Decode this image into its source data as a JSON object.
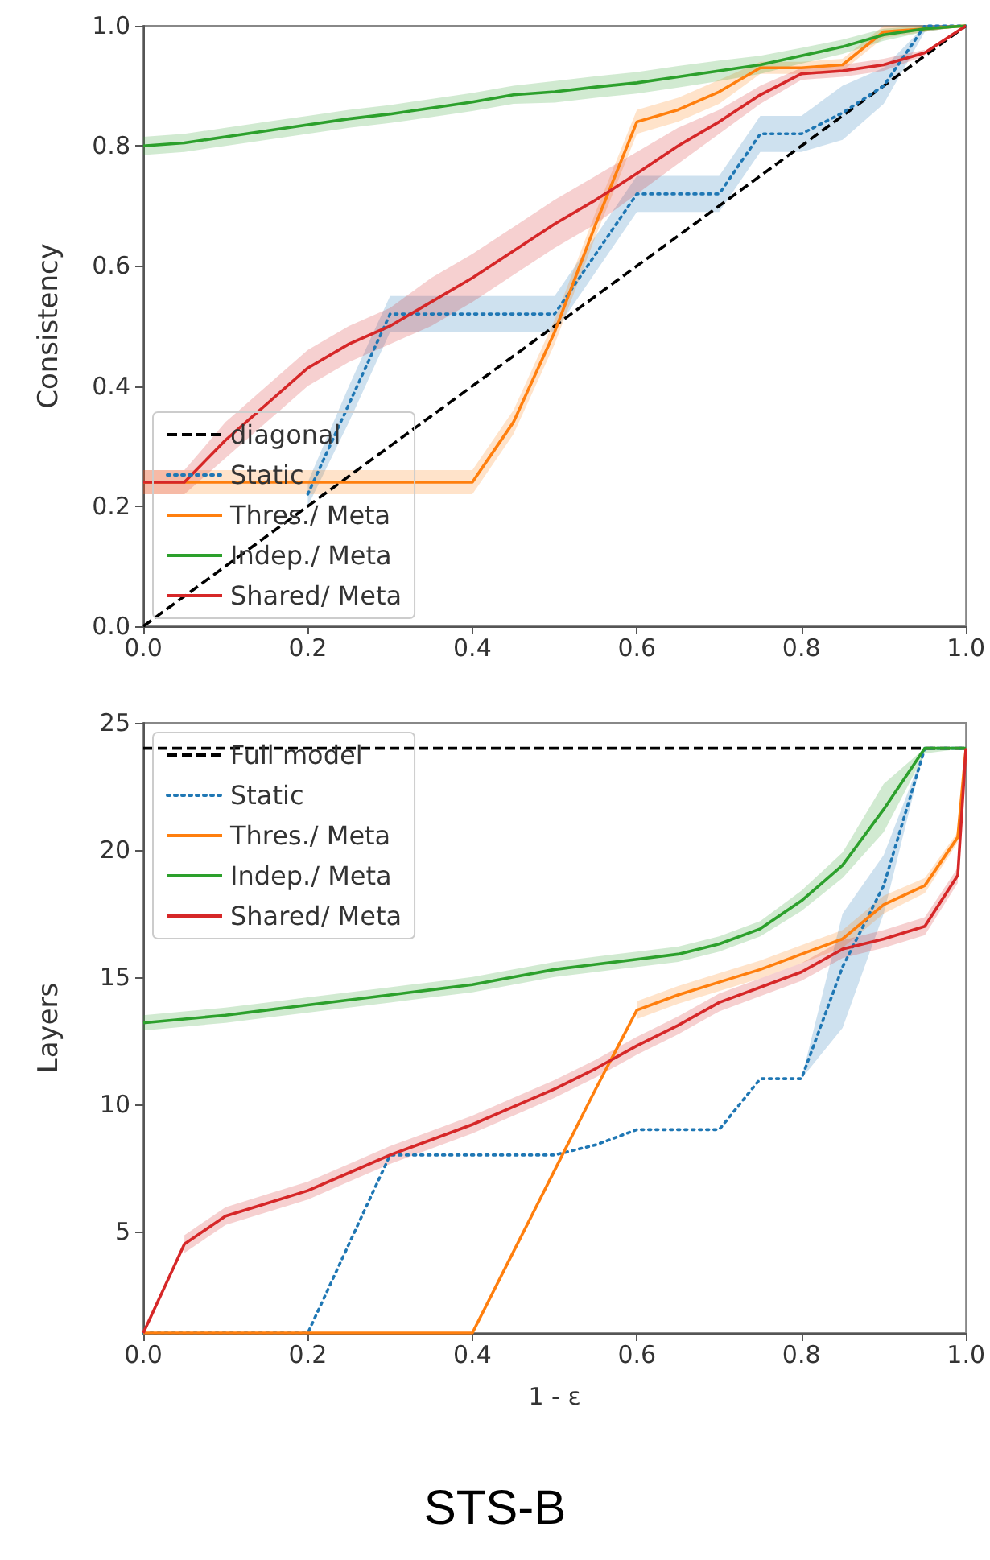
{
  "chart_data": [
    {
      "type": "line",
      "ylabel": "Consistency",
      "xlim": [
        0,
        1
      ],
      "ylim": [
        0,
        1
      ],
      "xticks": [
        {
          "value": 0,
          "label": "0.0"
        },
        {
          "value": 0.2,
          "label": "0.2"
        },
        {
          "value": 0.4,
          "label": "0.4"
        },
        {
          "value": 0.6,
          "label": "0.6"
        },
        {
          "value": 0.8,
          "label": "0.8"
        },
        {
          "value": 1,
          "label": "1.0"
        }
      ],
      "yticks": [
        {
          "value": 0,
          "label": "0.0"
        },
        {
          "value": 0.2,
          "label": "0.2"
        },
        {
          "value": 0.4,
          "label": "0.4"
        },
        {
          "value": 0.6,
          "label": "0.6"
        },
        {
          "value": 0.8,
          "label": "0.8"
        },
        {
          "value": 1,
          "label": "1.0"
        }
      ],
      "grid": false,
      "legend": "bottom left",
      "marker": "none",
      "series": [
        {
          "name": "diagonal",
          "color": "#000000",
          "line_style": "dashed",
          "x": [
            0,
            1
          ],
          "values": [
            0,
            1
          ]
        },
        {
          "name": "Static",
          "color": "#1f77b4",
          "line_style": "dotted",
          "x": [
            0.2,
            0.25,
            0.3,
            0.35,
            0.4,
            0.45,
            0.5,
            0.55,
            0.6,
            0.65,
            0.7,
            0.75,
            0.8,
            0.85,
            0.9,
            0.95,
            1
          ],
          "values": [
            0.22,
            0.37,
            0.52,
            0.52,
            0.52,
            0.52,
            0.52,
            0.62,
            0.72,
            0.72,
            0.72,
            0.82,
            0.82,
            0.855,
            0.9,
            1.0,
            1.0
          ],
          "lower": [
            0.2,
            0.34,
            0.49,
            0.49,
            0.49,
            0.49,
            0.49,
            0.59,
            0.69,
            0.69,
            0.69,
            0.79,
            0.79,
            0.81,
            0.87,
            0.99,
            1.0
          ],
          "upper": [
            0.24,
            0.4,
            0.55,
            0.55,
            0.55,
            0.55,
            0.55,
            0.65,
            0.75,
            0.75,
            0.75,
            0.85,
            0.85,
            0.9,
            0.93,
            1.0,
            1.0
          ]
        },
        {
          "name": "Thres./ Meta",
          "color": "#ff7f0e",
          "line_style": "solid",
          "x": [
            0,
            0.05,
            0.1,
            0.15,
            0.2,
            0.25,
            0.3,
            0.35,
            0.4,
            0.45,
            0.5,
            0.55,
            0.6,
            0.65,
            0.7,
            0.75,
            0.8,
            0.85,
            0.9,
            0.95,
            1
          ],
          "values": [
            0.24,
            0.24,
            0.24,
            0.24,
            0.24,
            0.24,
            0.24,
            0.24,
            0.24,
            0.34,
            0.49,
            0.67,
            0.84,
            0.86,
            0.89,
            0.93,
            0.93,
            0.935,
            0.99,
            0.995,
            1.0
          ],
          "lower": [
            0.22,
            0.22,
            0.22,
            0.22,
            0.22,
            0.22,
            0.22,
            0.22,
            0.22,
            0.32,
            0.47,
            0.65,
            0.82,
            0.84,
            0.87,
            0.92,
            0.92,
            0.925,
            0.98,
            0.99,
            1.0
          ],
          "upper": [
            0.26,
            0.26,
            0.26,
            0.26,
            0.26,
            0.26,
            0.26,
            0.26,
            0.26,
            0.36,
            0.51,
            0.69,
            0.86,
            0.88,
            0.91,
            0.94,
            0.94,
            0.945,
            1.0,
            1.0,
            1.0
          ]
        },
        {
          "name": "Indep./ Meta",
          "color": "#2ca02c",
          "line_style": "solid",
          "x": [
            0,
            0.05,
            0.1,
            0.15,
            0.2,
            0.25,
            0.3,
            0.35,
            0.4,
            0.45,
            0.5,
            0.55,
            0.6,
            0.65,
            0.7,
            0.75,
            0.8,
            0.85,
            0.9,
            0.95,
            1
          ],
          "values": [
            0.8,
            0.805,
            0.815,
            0.825,
            0.835,
            0.845,
            0.853,
            0.863,
            0.873,
            0.885,
            0.89,
            0.898,
            0.905,
            0.915,
            0.925,
            0.935,
            0.95,
            0.965,
            0.985,
            0.995,
            1.0
          ],
          "lower": [
            0.785,
            0.79,
            0.8,
            0.81,
            0.82,
            0.83,
            0.838,
            0.848,
            0.858,
            0.87,
            0.872,
            0.88,
            0.887,
            0.897,
            0.908,
            0.92,
            0.937,
            0.953,
            0.975,
            0.99,
            1.0
          ],
          "upper": [
            0.815,
            0.82,
            0.83,
            0.84,
            0.85,
            0.86,
            0.868,
            0.878,
            0.888,
            0.9,
            0.908,
            0.916,
            0.923,
            0.933,
            0.942,
            0.95,
            0.963,
            0.977,
            0.995,
            1.0,
            1.0
          ]
        },
        {
          "name": "Shared/ Meta",
          "color": "#d62728",
          "line_style": "solid",
          "x": [
            0,
            0.05,
            0.1,
            0.15,
            0.2,
            0.25,
            0.3,
            0.35,
            0.4,
            0.45,
            0.5,
            0.55,
            0.6,
            0.65,
            0.7,
            0.75,
            0.8,
            0.85,
            0.9,
            0.95,
            1
          ],
          "values": [
            0.24,
            0.24,
            0.31,
            0.37,
            0.43,
            0.47,
            0.5,
            0.54,
            0.58,
            0.625,
            0.67,
            0.71,
            0.754,
            0.8,
            0.84,
            0.885,
            0.92,
            0.925,
            0.935,
            0.955,
            1.0
          ],
          "lower": [
            0.22,
            0.22,
            0.28,
            0.34,
            0.4,
            0.44,
            0.47,
            0.5,
            0.54,
            0.585,
            0.63,
            0.67,
            0.72,
            0.77,
            0.82,
            0.87,
            0.91,
            0.915,
            0.925,
            0.95,
            null
          ],
          "upper": [
            0.26,
            0.26,
            0.34,
            0.4,
            0.46,
            0.5,
            0.53,
            0.58,
            0.62,
            0.665,
            0.71,
            0.75,
            0.79,
            0.83,
            0.86,
            0.9,
            0.93,
            0.935,
            0.945,
            0.96,
            null
          ]
        }
      ]
    },
    {
      "type": "line",
      "xlabel": "1 - ε",
      "ylabel": "Layers",
      "xlim": [
        0,
        1
      ],
      "ylim": [
        1,
        25
      ],
      "xticks": [
        {
          "value": 0,
          "label": "0.0"
        },
        {
          "value": 0.2,
          "label": "0.2"
        },
        {
          "value": 0.4,
          "label": "0.4"
        },
        {
          "value": 0.6,
          "label": "0.6"
        },
        {
          "value": 0.8,
          "label": "0.8"
        },
        {
          "value": 1,
          "label": "1.0"
        }
      ],
      "yticks": [
        5,
        10,
        15,
        20,
        25
      ],
      "grid": false,
      "legend": "top left",
      "marker": "none",
      "annotations": [
        "STS-B"
      ],
      "series": [
        {
          "name": "Full model",
          "color": "#000000",
          "line_style": "dashed",
          "x": [
            0,
            1
          ],
          "values": [
            24,
            24
          ]
        },
        {
          "name": "Static",
          "color": "#1f77b4",
          "line_style": "dotted",
          "x": [
            0,
            0.05,
            0.1,
            0.15,
            0.2,
            0.25,
            0.3,
            0.35,
            0.4,
            0.45,
            0.5,
            0.55,
            0.6,
            0.65,
            0.7,
            0.75,
            0.8,
            0.85,
            0.9,
            0.95,
            1
          ],
          "values": [
            1,
            1,
            1,
            1,
            1,
            4.5,
            8,
            8,
            8,
            8,
            8,
            8.4,
            9,
            9,
            9,
            11,
            11,
            15.4,
            18.6,
            24,
            24
          ],
          "lower": [
            1,
            1,
            1,
            1,
            1,
            4.5,
            8,
            8,
            8,
            8,
            8,
            8.4,
            9,
            9,
            9,
            11,
            11,
            13,
            17.5,
            24,
            24
          ],
          "upper": [
            1,
            1,
            1,
            1,
            1,
            4.5,
            8,
            8,
            8,
            8,
            8,
            8.4,
            9,
            9,
            9,
            11,
            11,
            17.5,
            19.8,
            24,
            24
          ]
        },
        {
          "name": "Thres./ Meta",
          "color": "#ff7f0e",
          "line_style": "solid",
          "x": [
            0,
            0.05,
            0.1,
            0.15,
            0.2,
            0.25,
            0.3,
            0.35,
            0.4,
            0.45,
            0.5,
            0.55,
            0.6,
            0.65,
            0.7,
            0.75,
            0.8,
            0.85,
            0.9,
            0.95,
            0.99,
            1
          ],
          "values": [
            1,
            1,
            1,
            1,
            1,
            1,
            1,
            1,
            1,
            4.2,
            7.4,
            10.6,
            13.7,
            14.3,
            14.8,
            15.3,
            15.9,
            16.5,
            17.85,
            18.6,
            20.5,
            24
          ],
          "lower": [
            null,
            null,
            null,
            null,
            null,
            null,
            null,
            null,
            null,
            null,
            null,
            null,
            13.35,
            13.95,
            14.45,
            14.95,
            15.55,
            16.15,
            17.5,
            18.3,
            20.3,
            null
          ],
          "upper": [
            null,
            null,
            null,
            null,
            null,
            null,
            null,
            null,
            null,
            null,
            null,
            null,
            14.05,
            14.65,
            15.15,
            15.65,
            16.25,
            16.85,
            18.2,
            18.9,
            20.7,
            null
          ]
        },
        {
          "name": "Indep./ Meta",
          "color": "#2ca02c",
          "line_style": "solid",
          "x": [
            0,
            0.05,
            0.1,
            0.15,
            0.2,
            0.25,
            0.3,
            0.35,
            0.4,
            0.45,
            0.5,
            0.55,
            0.6,
            0.65,
            0.7,
            0.75,
            0.8,
            0.85,
            0.9,
            0.95,
            1
          ],
          "values": [
            13.2,
            13.35,
            13.5,
            13.7,
            13.9,
            14.1,
            14.3,
            14.5,
            14.7,
            15.0,
            15.3,
            15.5,
            15.7,
            15.9,
            16.3,
            16.9,
            18.0,
            19.4,
            21.6,
            24,
            24
          ],
          "lower": [
            12.9,
            13.05,
            13.2,
            13.4,
            13.6,
            13.8,
            14.0,
            14.2,
            14.4,
            14.7,
            15.0,
            15.2,
            15.4,
            15.6,
            16.0,
            16.6,
            17.6,
            18.9,
            20.7,
            23.8,
            24
          ],
          "upper": [
            13.5,
            13.65,
            13.8,
            14.0,
            14.2,
            14.4,
            14.6,
            14.8,
            15.0,
            15.3,
            15.6,
            15.8,
            16.0,
            16.2,
            16.6,
            17.2,
            18.4,
            19.9,
            22.6,
            24,
            24
          ]
        },
        {
          "name": "Shared/ Meta",
          "color": "#d62728",
          "line_style": "solid",
          "x": [
            0,
            0.05,
            0.1,
            0.15,
            0.2,
            0.25,
            0.3,
            0.35,
            0.4,
            0.45,
            0.5,
            0.55,
            0.6,
            0.65,
            0.7,
            0.75,
            0.8,
            0.85,
            0.9,
            0.95,
            0.99,
            1
          ],
          "values": [
            1,
            4.5,
            5.6,
            6.1,
            6.6,
            7.3,
            8.0,
            8.6,
            9.2,
            9.9,
            10.6,
            11.4,
            12.3,
            13.1,
            14.0,
            14.6,
            15.2,
            16.1,
            16.5,
            17.0,
            19.0,
            24
          ],
          "lower": [
            null,
            4.15,
            5.25,
            5.75,
            6.25,
            6.95,
            7.65,
            8.25,
            8.85,
            9.55,
            10.25,
            11.05,
            11.95,
            12.75,
            13.65,
            14.25,
            14.85,
            15.75,
            16.15,
            16.65,
            18.7,
            null
          ],
          "upper": [
            null,
            4.85,
            5.95,
            6.45,
            6.95,
            7.65,
            8.35,
            8.95,
            9.55,
            10.25,
            10.95,
            11.75,
            12.65,
            13.45,
            14.35,
            14.95,
            15.55,
            16.45,
            16.85,
            17.35,
            19.3,
            null
          ]
        }
      ]
    }
  ]
}
